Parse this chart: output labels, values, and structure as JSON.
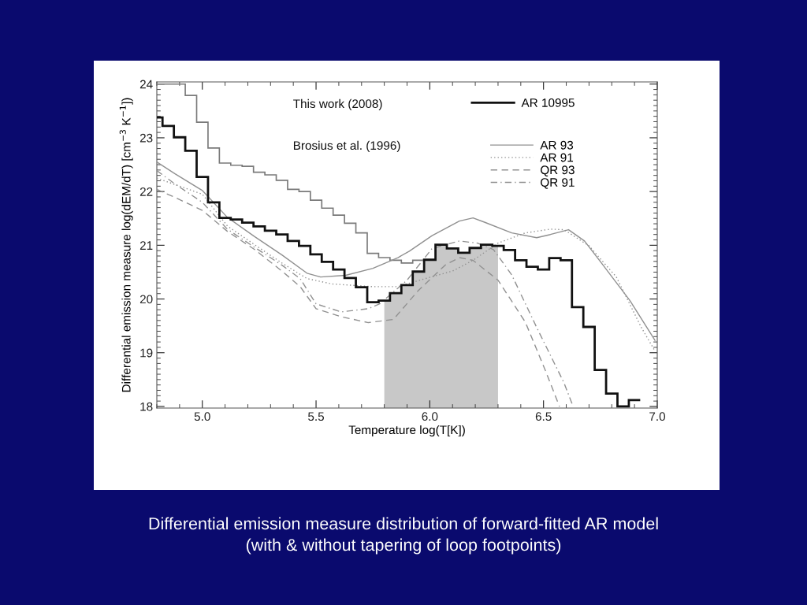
{
  "chart_data": {
    "type": "line",
    "xlabel": "Temperature log(T[K])",
    "ylabel": "Differential emission measure log(dEM/dT) [cm$^{−3}$ K$^{−1}$])",
    "xlim": [
      4.8,
      7.0
    ],
    "ylim": [
      17.97,
      24.04
    ],
    "xticks": [
      {
        "value": 5,
        "label": "5.0"
      },
      {
        "value": 5.5,
        "label": "5.5"
      },
      {
        "value": 6,
        "label": "6.0"
      },
      {
        "value": 6.5,
        "label": "6.5"
      },
      {
        "value": 7,
        "label": "7.0"
      }
    ],
    "yticks": [
      18,
      19,
      20,
      21,
      22,
      23,
      24
    ],
    "grid": false,
    "legend": "top right",
    "annotations": [
      "This work (2008)",
      "Brosius et al. (1996)",
      "Differential emission measure distribution of forward-fitted AR model\n(with & without tapering of loop footpoints)"
    ],
    "bands": [
      {
        "axis": "x",
        "from": 5.8,
        "to": 6.3,
        "color": "#c8c8c8"
      }
    ],
    "series": [
      {
        "name": "AR 10995",
        "type": "histogram",
        "color": "#111111",
        "line_style": "solid",
        "bins": [
          4.8,
          4.825,
          4.875,
          4.925,
          4.975,
          5.025,
          5.075,
          5.125,
          5.175,
          5.225,
          5.275,
          5.325,
          5.375,
          5.425,
          5.475,
          5.525,
          5.575,
          5.625,
          5.675,
          5.725,
          5.775,
          5.825,
          5.875,
          5.925,
          5.975,
          6.025,
          6.075,
          6.125,
          6.175,
          6.225,
          6.275,
          6.325,
          6.375,
          6.425,
          6.475,
          6.525,
          6.575,
          6.625,
          6.675,
          6.725,
          6.775,
          6.825,
          6.875,
          6.925
        ],
        "values": [
          23.38,
          23.22,
          23.01,
          22.76,
          22.27,
          21.8,
          21.51,
          21.48,
          21.42,
          21.35,
          21.27,
          21.2,
          21.08,
          20.99,
          20.83,
          20.69,
          20.55,
          20.39,
          20.22,
          19.94,
          19.97,
          20.11,
          20.26,
          20.51,
          20.73,
          21.01,
          20.94,
          20.86,
          20.95,
          21.01,
          20.99,
          20.91,
          20.72,
          20.6,
          20.55,
          20.76,
          20.72,
          19.85,
          19.48,
          18.68,
          18.24,
          18.0,
          18.12
        ]
      },
      {
        "type": "histogram",
        "color": "#7a7a7a",
        "line_style": "solid",
        "bins": [
          4.8,
          4.825,
          4.875,
          4.925,
          4.975,
          5.025,
          5.075,
          5.125,
          5.175,
          5.225,
          5.275,
          5.325,
          5.375,
          5.425,
          5.475,
          5.525,
          5.575,
          5.625,
          5.675,
          5.725,
          5.775,
          5.825,
          5.875,
          5.925,
          5.975
        ],
        "values": [
          24.0,
          24.0,
          24.0,
          23.79,
          23.29,
          22.81,
          22.53,
          22.49,
          22.47,
          22.36,
          22.31,
          22.21,
          22.04,
          22.0,
          21.84,
          21.69,
          21.56,
          21.41,
          21.23,
          20.85,
          20.77,
          20.72,
          20.67,
          20.72
        ]
      },
      {
        "name": "AR 93",
        "color": "#909090",
        "line_style": "solid",
        "x": [
          4.8,
          4.88,
          5.0,
          5.11,
          5.23,
          5.35,
          5.46,
          5.52,
          5.63,
          5.75,
          5.86,
          5.91,
          6.01,
          6.13,
          6.19,
          6.24,
          6.36,
          6.47,
          6.53,
          6.61,
          6.68,
          6.76,
          6.88,
          6.99
        ],
        "values": [
          22.55,
          22.33,
          22.02,
          21.52,
          21.16,
          20.82,
          20.48,
          20.41,
          20.44,
          20.57,
          20.77,
          20.89,
          21.18,
          21.45,
          21.51,
          21.43,
          21.23,
          21.14,
          21.2,
          21.29,
          21.08,
          20.64,
          19.97,
          19.23
        ]
      },
      {
        "name": "AR 91",
        "color": "#909090",
        "line_style": "dotted",
        "x": [
          4.8,
          5.0,
          5.11,
          5.23,
          5.35,
          5.46,
          5.57,
          5.75,
          5.86,
          5.98,
          6.1,
          6.19,
          6.3,
          6.42,
          6.53,
          6.59,
          6.7,
          6.82,
          6.93,
          6.99
        ],
        "values": [
          22.25,
          21.95,
          21.36,
          21.01,
          20.67,
          20.38,
          20.28,
          20.23,
          20.23,
          20.38,
          20.52,
          20.72,
          21.04,
          21.23,
          21.3,
          21.29,
          20.99,
          20.41,
          19.47,
          19.03
        ]
      },
      {
        "name": "QR 93",
        "color": "#909090",
        "line_style": "dashed",
        "x": [
          4.8,
          4.88,
          5.0,
          5.11,
          5.23,
          5.35,
          5.43,
          5.5,
          5.61,
          5.73,
          5.84,
          5.95,
          6.07,
          6.13,
          6.19,
          6.3,
          6.42,
          6.51,
          6.57
        ],
        "values": [
          22.04,
          21.89,
          21.65,
          21.26,
          20.92,
          20.52,
          20.23,
          19.82,
          19.67,
          19.56,
          19.62,
          20.16,
          20.64,
          20.77,
          20.72,
          20.35,
          19.57,
          18.65,
          18.0
        ]
      },
      {
        "name": "QR 91",
        "color": "#909090",
        "line_style": "dashdot",
        "x": [
          4.8,
          4.88,
          5.0,
          5.11,
          5.23,
          5.35,
          5.43,
          5.5,
          5.61,
          5.73,
          5.78,
          5.9,
          6.01,
          6.13,
          6.21,
          6.28,
          6.36,
          6.47,
          6.59,
          6.63
        ],
        "values": [
          22.39,
          22.14,
          21.8,
          21.3,
          20.96,
          20.63,
          20.38,
          19.91,
          19.76,
          19.82,
          19.91,
          20.35,
          20.94,
          21.08,
          21.04,
          20.92,
          20.45,
          19.47,
          18.44,
          18.0
        ]
      }
    ]
  }
}
